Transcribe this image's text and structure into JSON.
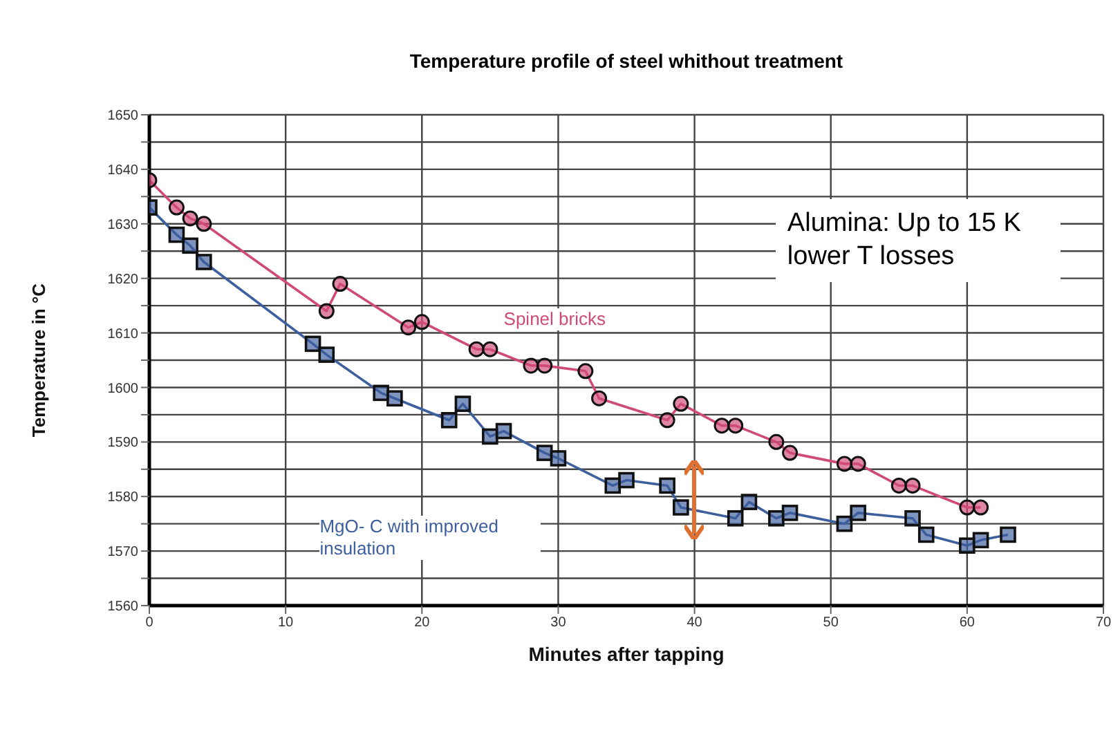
{
  "chart_data": {
    "type": "line",
    "title": "Temperature profile of steel whithout treatment",
    "xlabel": "Minutes after tapping",
    "ylabel": "Temperature in °C",
    "xlim": [
      0,
      70
    ],
    "xticks": [
      0,
      10,
      20,
      30,
      40,
      50,
      60,
      70
    ],
    "ylim": [
      1560,
      1650
    ],
    "yticks": [
      1560,
      {
        "value": 1565,
        "label": null
      },
      1570,
      {
        "value": 1575,
        "label": null
      },
      1580,
      {
        "value": 1585,
        "label": null
      },
      1590,
      {
        "value": 1595,
        "label": null
      },
      1600,
      {
        "value": 1605,
        "label": null
      },
      1610,
      {
        "value": 1615,
        "label": null
      },
      1620,
      {
        "value": 1625,
        "label": null
      },
      1630,
      {
        "value": 1635,
        "label": null
      },
      1640,
      {
        "value": 1645,
        "label": null
      },
      1650
    ],
    "grid": true,
    "annotations": [
      "Alumina: Up to 15 K lower T losses"
    ],
    "series": [
      {
        "name": "Spinel bricks",
        "color": "#d04a78",
        "marker": "circle",
        "x": [
          0,
          2,
          3,
          4,
          13,
          14,
          19,
          20,
          24,
          25,
          28,
          29,
          32,
          33,
          38,
          39,
          42,
          43,
          46,
          47,
          51,
          52,
          55,
          56,
          60,
          61
        ],
        "values": [
          1638,
          1633,
          1631,
          1630,
          1614,
          1619,
          1611,
          1612,
          1607,
          1607,
          1604,
          1604,
          1603,
          1598,
          1594,
          1597,
          1593,
          1593,
          1590,
          1588,
          1586,
          1586,
          1582,
          1582,
          1578,
          1578
        ]
      },
      {
        "name": "MgO- C with improved insulation",
        "color": "#3d5f9e",
        "marker": "square",
        "x": [
          0,
          2,
          3,
          4,
          12,
          13,
          17,
          18,
          22,
          23,
          25,
          26,
          29,
          30,
          34,
          35,
          38,
          39,
          43,
          44,
          46,
          47,
          51,
          52,
          56,
          57,
          60,
          61,
          63
        ],
        "values": [
          1633,
          1628,
          1626,
          1623,
          1608,
          1606,
          1599,
          1598,
          1594,
          1597,
          1591,
          1592,
          1588,
          1587,
          1582,
          1583,
          1582,
          1578,
          1576,
          1579,
          1576,
          1577,
          1575,
          1577,
          1576,
          1573,
          1571,
          1572,
          1573
        ]
      }
    ]
  }
}
